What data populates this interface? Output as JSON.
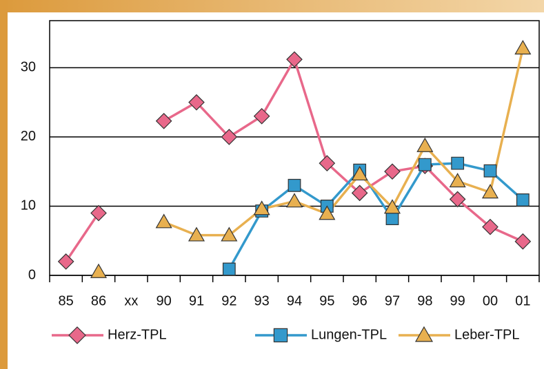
{
  "chart_data": {
    "type": "line",
    "categories": [
      "85",
      "86",
      "xx",
      "90",
      "91",
      "92",
      "93",
      "94",
      "95",
      "96",
      "97",
      "98",
      "99",
      "00",
      "01"
    ],
    "series": [
      {
        "name": "Herz-TPL",
        "color": "#e8688a",
        "marker": "diamond",
        "values": [
          2,
          9,
          null,
          22.3,
          25,
          20,
          23,
          31.2,
          16.2,
          11.9,
          15,
          15.8,
          11,
          7,
          4.9
        ]
      },
      {
        "name": "Lungen-TPL",
        "color": "#3399cc",
        "marker": "square",
        "values": [
          null,
          null,
          null,
          null,
          null,
          0.9,
          9.3,
          13,
          10,
          15.2,
          8.2,
          16,
          16.2,
          15.1,
          10.9
        ]
      },
      {
        "name": "Leber-TPL",
        "color": "#e8b050",
        "marker": "triangle",
        "values": [
          null,
          0.5,
          null,
          7.7,
          5.8,
          5.8,
          9.6,
          10.7,
          8.9,
          14.6,
          9.8,
          18.7,
          13.6,
          12,
          32.8
        ]
      }
    ],
    "ylim": [
      0,
      36.8
    ],
    "yticks": [
      0,
      10,
      20,
      30
    ],
    "grid": true,
    "legend": "bottom"
  }
}
